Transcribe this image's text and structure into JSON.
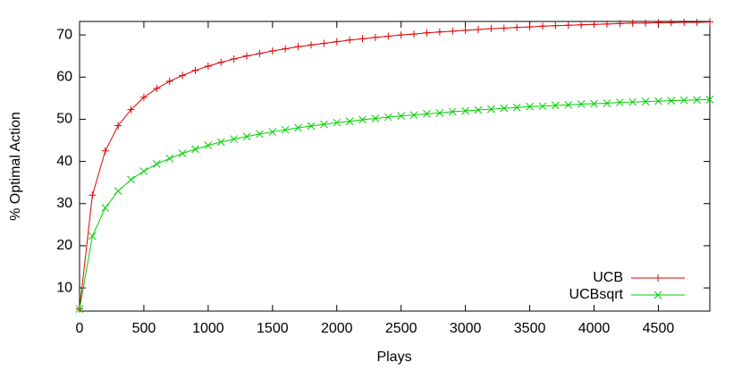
{
  "chart_data": {
    "type": "line",
    "x_label": "Plays",
    "y_label": "% Optimal Action",
    "x": [
      0,
      100,
      200,
      300,
      400,
      500,
      600,
      700,
      800,
      900,
      1000,
      1100,
      1200,
      1300,
      1400,
      1500,
      1600,
      1700,
      1800,
      1900,
      2000,
      2100,
      2200,
      2300,
      2400,
      2500,
      2600,
      2700,
      2800,
      2900,
      3000,
      3100,
      3200,
      3300,
      3400,
      3500,
      3600,
      3700,
      3800,
      3900,
      4000,
      4100,
      4200,
      4300,
      4400,
      4500,
      4600,
      4700,
      4800,
      4900
    ],
    "series": [
      {
        "name": "UCB",
        "color": "#e00000",
        "marker": "plus",
        "values": [
          5,
          32,
          42.5,
          48.5,
          52.3,
          55.2,
          57.3,
          59,
          60.4,
          61.6,
          62.6,
          63.5,
          64.3,
          65,
          65.6,
          66.2,
          66.7,
          67.2,
          67.6,
          68,
          68.4,
          68.8,
          69.1,
          69.4,
          69.7,
          70,
          70.2,
          70.5,
          70.7,
          70.9,
          71.1,
          71.3,
          71.5,
          71.6,
          71.8,
          71.9,
          72.1,
          72.2,
          72.3,
          72.4,
          72.5,
          72.6,
          72.7,
          72.8,
          72.8,
          72.9,
          72.9,
          73,
          73,
          73.1
        ]
      },
      {
        "name": "UCBsqrt",
        "color": "#00d000",
        "marker": "cross",
        "values": [
          5,
          22.3,
          29,
          33,
          35.7,
          37.7,
          39.4,
          40.7,
          41.9,
          42.9,
          43.8,
          44.6,
          45.3,
          45.9,
          46.5,
          47,
          47.5,
          48,
          48.4,
          48.8,
          49.2,
          49.5,
          49.9,
          50.2,
          50.5,
          50.8,
          51,
          51.3,
          51.5,
          51.8,
          52,
          52.2,
          52.4,
          52.6,
          52.8,
          53,
          53.1,
          53.3,
          53.4,
          53.6,
          53.7,
          53.8,
          54,
          54.1,
          54.2,
          54.3,
          54.4,
          54.5,
          54.6,
          54.7
        ]
      }
    ],
    "xlim": [
      0,
      4900
    ],
    "ylim": [
      4.5,
      73.2
    ],
    "xticks": [
      0,
      500,
      1000,
      1500,
      2000,
      2500,
      3000,
      3500,
      4000,
      4500
    ],
    "yticks": [
      10,
      20,
      30,
      40,
      50,
      60,
      70
    ],
    "grid": false,
    "legend": "lower right"
  }
}
